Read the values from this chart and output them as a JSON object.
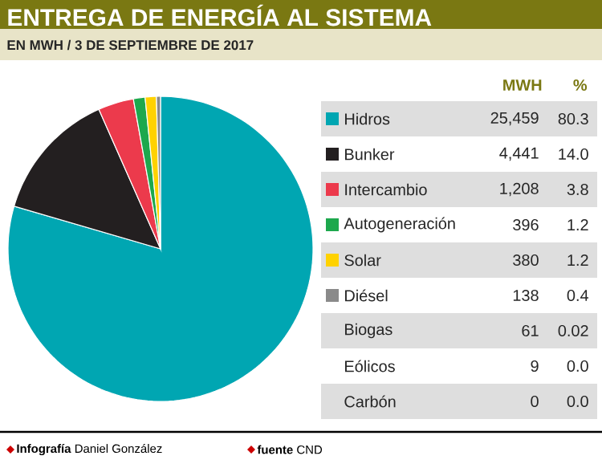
{
  "chart_data": [
    {
      "type": "pie",
      "title": "ENTREGA DE ENERGÍA AL SISTEMA",
      "subtitle": "EN MWH / 3 DE SEPTIEMBRE DE 2017",
      "categories": [
        "Hidros",
        "Bunker",
        "Intercambio",
        "Autogeneración",
        "Solar",
        "Diésel"
      ],
      "values": [
        25459,
        4441,
        1208,
        396,
        380,
        138
      ],
      "value_labels": [
        "25,459",
        "4,441",
        "1,208",
        "396",
        "380",
        "138"
      ],
      "colors": [
        "#00a6b2",
        "#231f20",
        "#ec3a4c",
        "#1da84d",
        "#ffd200",
        "#8a8a8a"
      ],
      "legend": "right",
      "annotations": [
        "MWH",
        "%",
        "80.3",
        "14.0",
        "3.8",
        "1.2",
        "1.2",
        "0.4",
        "**Infografía** Daniel González",
        "**fuente** CND"
      ]
    },
    {
      "type": "other",
      "categories": [
        "Biogas",
        "Eólicos",
        "Carbón"
      ],
      "value_labels": [
        "61",
        "9",
        "0"
      ],
      "annotations": [
        "0.02",
        "0.0",
        "0.0"
      ]
    }
  ]
}
